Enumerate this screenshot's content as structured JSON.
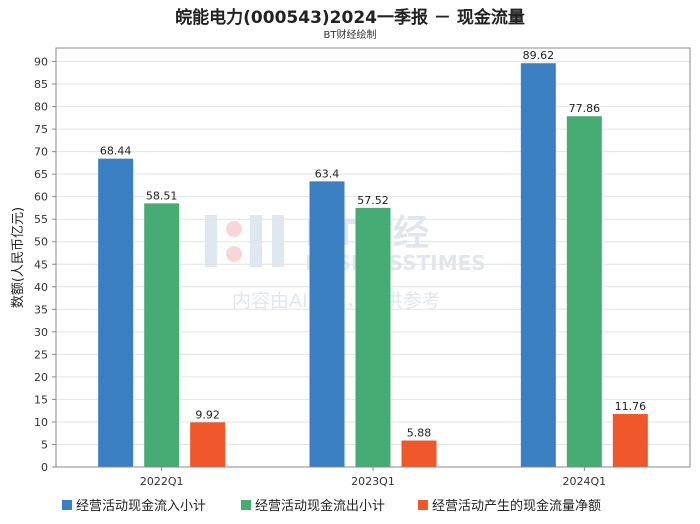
{
  "title": "皖能电力(000543)2024一季报 － 现金流量",
  "subtitle": "BT财经绘制",
  "watermark": {
    "line1": "BT财经",
    "line2": "BUSINESSTIMES",
    "line3": "内容由AI生成，仅供参考"
  },
  "chart_data": {
    "type": "bar",
    "categories": [
      "2022Q1",
      "2023Q1",
      "2024Q1"
    ],
    "series": [
      {
        "name": "经营活动现金流入小计",
        "color": "#3a7fc1",
        "values": [
          68.44,
          63.4,
          89.62
        ],
        "labels": [
          "68.44",
          "63.4",
          "89.62"
        ]
      },
      {
        "name": "经营活动现金流出小计",
        "color": "#46ac74",
        "values": [
          58.51,
          57.52,
          77.86
        ],
        "labels": [
          "58.51",
          "57.52",
          "77.86"
        ]
      },
      {
        "name": "经营活动产生的现金流量净额",
        "color": "#f0572a",
        "values": [
          9.92,
          5.88,
          11.76
        ],
        "labels": [
          "9.92",
          "5.88",
          "11.76"
        ]
      }
    ],
    "ylabel": "数额(人民币亿元)",
    "ylim": [
      0,
      93
    ],
    "yticks": [
      "0",
      "5",
      "10",
      "15",
      "20",
      "25",
      "30",
      "35",
      "40",
      "45",
      "50",
      "55",
      "60",
      "65",
      "70",
      "75",
      "80",
      "85",
      "90"
    ],
    "grid": true,
    "legend": "bottom"
  }
}
